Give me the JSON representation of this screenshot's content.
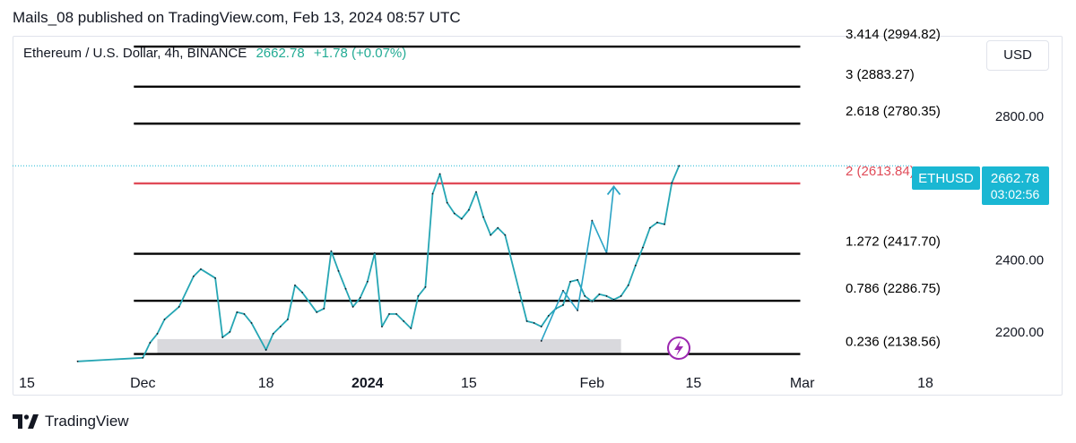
{
  "header": {
    "published_by": "Mails_08 published on TradingView.com, Feb 13, 2024 08:57 UTC"
  },
  "symbol": {
    "label": "Ethereum / U.S. Dollar, 4h, BINANCE",
    "price": "2662.78",
    "change": "+1.78 (+0.07%)",
    "change_color": "#22ab94"
  },
  "currency_button": "USD",
  "price_tag": {
    "ticker": "ETHUSD",
    "price": "2662.78",
    "countdown": "03:02:56",
    "color": "#1ab7d3"
  },
  "footer": {
    "brand": "TradingView",
    "logo_icon": "tradingview-logo-icon"
  },
  "chart_data": {
    "type": "line",
    "title": "",
    "xlabel": "",
    "ylabel": "",
    "ylim": [
      2115,
      3025
    ],
    "x_ticks": [
      "15",
      "Dec",
      "18",
      "2024",
      "15",
      "Feb",
      "15",
      "Mar",
      "18"
    ],
    "x_tick_dates": [
      "2023-11-15",
      "2023-12-01",
      "2023-12-18",
      "2024-01-01",
      "2024-01-15",
      "2024-02-01",
      "2024-02-15",
      "2024-03-01",
      "2024-03-18"
    ],
    "bold_ticks": [
      "2024"
    ],
    "y_ticks": [
      2200.0,
      2400.0,
      2800.0
    ],
    "y_tick_labels": [
      "2200.00",
      "2400.00",
      "2800.00"
    ],
    "grid": false,
    "last_price_line": 2662.78,
    "fib_levels": [
      {
        "label": "3.414 (2994.82)",
        "ratio": 3.414,
        "price": 2994.82,
        "color": "#000000"
      },
      {
        "label": "3 (2883.27)",
        "ratio": 3,
        "price": 2883.27,
        "color": "#000000"
      },
      {
        "label": "2.618 (2780.35)",
        "ratio": 2.618,
        "price": 2780.35,
        "color": "#000000"
      },
      {
        "label": "2 (2613.84)",
        "ratio": 2,
        "price": 2613.84,
        "color": "#e04b58"
      },
      {
        "label": "1.272 (2417.70)",
        "ratio": 1.272,
        "price": 2417.7,
        "color": "#000000"
      },
      {
        "label": "0.786 (2286.75)",
        "ratio": 0.786,
        "price": 2286.75,
        "color": "#000000"
      },
      {
        "label": "0.236 (2138.56)",
        "ratio": 0.236,
        "price": 2138.56,
        "color": "#000000"
      }
    ],
    "fib_start_date": "2023-12-01",
    "fib_end_date": "2024-02-28",
    "zone": {
      "from_date": "2023-12-03",
      "to_date": "2024-02-05",
      "low": 2137,
      "high": 2180,
      "color": "#d9d9dd"
    },
    "series": [
      {
        "color": "#26a6b4",
        "points": [
          [
            "2023-11-22",
            2118
          ],
          [
            "2023-12-01",
            2128
          ],
          [
            "2023-12-02",
            2170
          ],
          [
            "2023-12-03",
            2195
          ],
          [
            "2023-12-04",
            2235
          ],
          [
            "2023-12-06",
            2270
          ],
          [
            "2023-12-08",
            2355
          ],
          [
            "2023-12-09",
            2375
          ],
          [
            "2023-12-11",
            2350
          ],
          [
            "2023-12-12",
            2185
          ],
          [
            "2023-12-13",
            2200
          ],
          [
            "2023-12-14",
            2255
          ],
          [
            "2023-12-15",
            2250
          ],
          [
            "2023-12-16",
            2225
          ],
          [
            "2023-12-18",
            2150
          ],
          [
            "2023-12-19",
            2195
          ],
          [
            "2023-12-20",
            2215
          ],
          [
            "2023-12-21",
            2235
          ],
          [
            "2023-12-22",
            2330
          ],
          [
            "2023-12-23",
            2310
          ],
          [
            "2023-12-25",
            2255
          ],
          [
            "2023-12-26",
            2265
          ],
          [
            "2023-12-27",
            2425
          ],
          [
            "2023-12-28",
            2370
          ],
          [
            "2023-12-29",
            2320
          ],
          [
            "2023-12-30",
            2270
          ],
          [
            "2023-12-31",
            2295
          ],
          [
            "2024-01-01",
            2340
          ],
          [
            "2024-01-02",
            2420
          ],
          [
            "2024-01-03",
            2215
          ],
          [
            "2024-01-04",
            2250
          ],
          [
            "2024-01-05",
            2250
          ],
          [
            "2024-01-06",
            2230
          ],
          [
            "2024-01-07",
            2210
          ],
          [
            "2024-01-08",
            2300
          ],
          [
            "2024-01-09",
            2325
          ],
          [
            "2024-01-10",
            2585
          ],
          [
            "2024-01-11",
            2640
          ],
          [
            "2024-01-12",
            2560
          ],
          [
            "2024-01-13",
            2530
          ],
          [
            "2024-01-14",
            2515
          ],
          [
            "2024-01-15",
            2540
          ],
          [
            "2024-01-16",
            2590
          ],
          [
            "2024-01-17",
            2520
          ],
          [
            "2024-01-18",
            2470
          ],
          [
            "2024-01-19",
            2490
          ],
          [
            "2024-01-20",
            2470
          ],
          [
            "2024-01-22",
            2310
          ],
          [
            "2024-01-23",
            2230
          ],
          [
            "2024-01-24",
            2225
          ],
          [
            "2024-01-25",
            2215
          ],
          [
            "2024-01-26",
            2245
          ],
          [
            "2024-01-27",
            2265
          ],
          [
            "2024-01-28",
            2275
          ],
          [
            "2024-01-29",
            2340
          ],
          [
            "2024-01-30",
            2345
          ],
          [
            "2024-01-31",
            2300
          ],
          [
            "2024-02-01",
            2285
          ],
          [
            "2024-02-02",
            2305
          ],
          [
            "2024-02-03",
            2300
          ],
          [
            "2024-02-04",
            2290
          ],
          [
            "2024-02-05",
            2300
          ],
          [
            "2024-02-06",
            2330
          ],
          [
            "2024-02-07",
            2385
          ],
          [
            "2024-02-08",
            2435
          ],
          [
            "2024-02-09",
            2490
          ],
          [
            "2024-02-10",
            2505
          ],
          [
            "2024-02-11",
            2500
          ],
          [
            "2024-02-12",
            2615
          ],
          [
            "2024-02-13",
            2662.78
          ]
        ]
      },
      {
        "color": "#2aa3c5",
        "points": [
          [
            "2024-01-25",
            2175
          ],
          [
            "2024-01-28",
            2315
          ],
          [
            "2024-01-30",
            2260
          ],
          [
            "2024-02-01",
            2510
          ],
          [
            "2024-02-03",
            2420
          ],
          [
            "2024-02-04",
            2605
          ]
        ]
      }
    ]
  }
}
